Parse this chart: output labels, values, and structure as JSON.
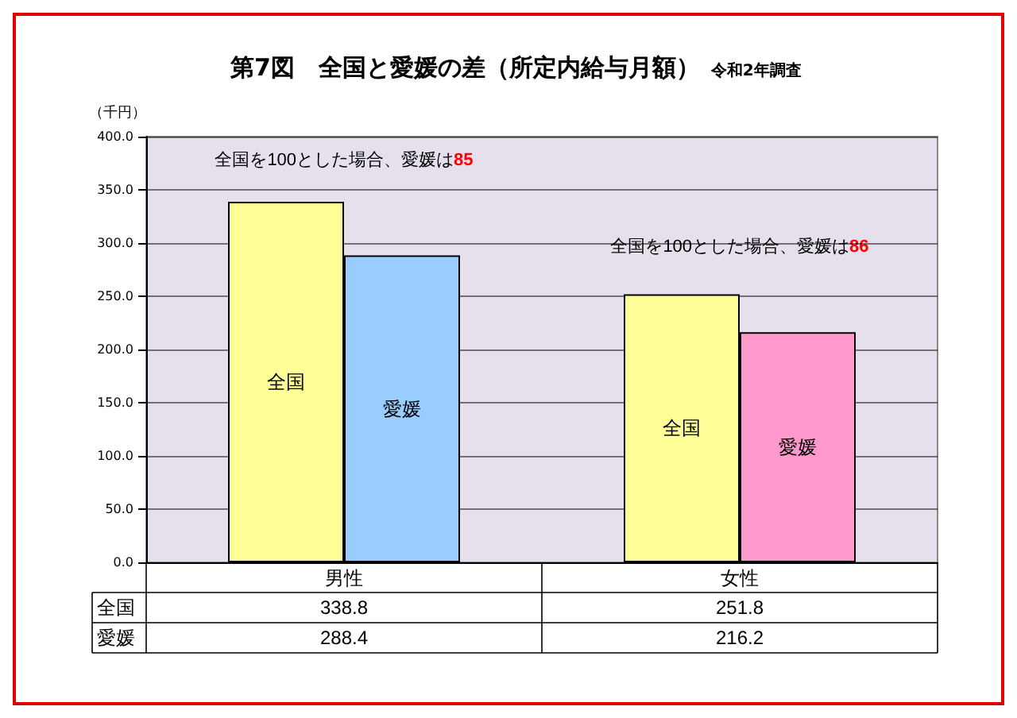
{
  "chart_data": {
    "type": "bar",
    "title": "第7図　全国と愛媛の差（所定内給与月額）",
    "subtitle": "令和2年調査",
    "ylabel": "（千円）",
    "categories": [
      "男性",
      "女性"
    ],
    "series": [
      {
        "name": "全国",
        "color": "#ffff99",
        "values": [
          338.8,
          251.8
        ]
      },
      {
        "name": "愛媛",
        "colors": [
          "#99ccff",
          "#ff99cc"
        ],
        "values": [
          288.4,
          216.2
        ]
      }
    ],
    "ylim": [
      0,
      400
    ],
    "yticks": [
      {
        "value": 0,
        "label": "0.0"
      },
      {
        "value": 50,
        "label": "50.0"
      },
      {
        "value": 100,
        "label": "100.0"
      },
      {
        "value": 150,
        "label": "150.0"
      },
      {
        "value": 200,
        "label": "200.0"
      },
      {
        "value": 250,
        "label": "250.0"
      },
      {
        "value": 300,
        "label": "300.0"
      },
      {
        "value": 350,
        "label": "350.0"
      },
      {
        "value": 400,
        "label": "400.0"
      }
    ],
    "grid": "y",
    "legend": false,
    "data_labels": true,
    "annotations": [
      "全国を100とした場合、愛媛は85",
      "全国を100とした場合、愛媛は86"
    ]
  }
}
